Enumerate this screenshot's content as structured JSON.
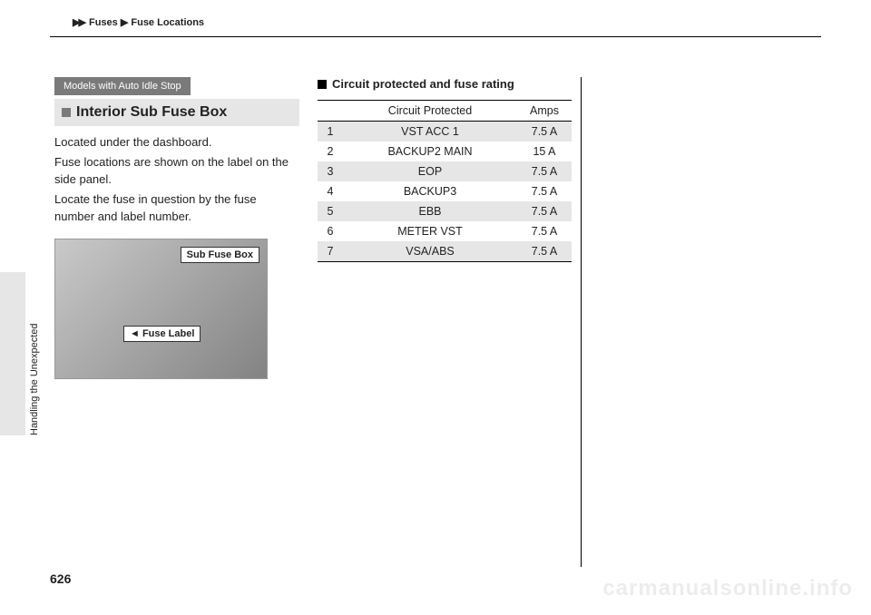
{
  "header": {
    "crumb1": "Fuses",
    "crumb2": "Fuse Locations"
  },
  "side": {
    "chapter": "Handling the Unexpected",
    "page_number": "626"
  },
  "left": {
    "badge": "Models with Auto Idle Stop",
    "section_title": "Interior Sub Fuse Box",
    "p1": "Located under the dashboard.",
    "p2": "Fuse locations are shown on the label on the side panel.",
    "p3": "Locate the fuse in question by the fuse number and label number.",
    "callout1": "Sub Fuse Box",
    "callout2": "Fuse Label"
  },
  "right": {
    "subhead": "Circuit protected and fuse rating",
    "table": {
      "headers": {
        "circuit": "Circuit Protected",
        "amps": "Amps"
      },
      "rows": [
        {
          "n": "1",
          "circuit": "VST ACC 1",
          "amps": "7.5 A"
        },
        {
          "n": "2",
          "circuit": "BACKUP2 MAIN",
          "amps": "15 A"
        },
        {
          "n": "3",
          "circuit": "EOP",
          "amps": "7.5 A"
        },
        {
          "n": "4",
          "circuit": "BACKUP3",
          "amps": "7.5 A"
        },
        {
          "n": "5",
          "circuit": "EBB",
          "amps": "7.5 A"
        },
        {
          "n": "6",
          "circuit": "METER VST",
          "amps": "7.5 A"
        },
        {
          "n": "7",
          "circuit": "VSA/ABS",
          "amps": "7.5 A"
        }
      ]
    }
  },
  "watermark": "carmanualsonline.info"
}
